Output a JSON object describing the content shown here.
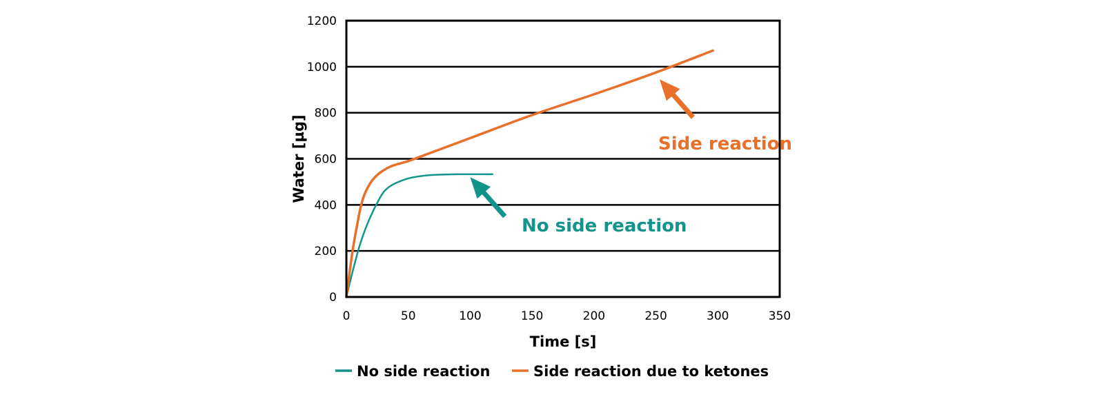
{
  "chart_data": {
    "type": "line",
    "xlabel": "Time [s]",
    "ylabel": "Water [µg]",
    "xlim": [
      0,
      350
    ],
    "ylim": [
      0,
      1200
    ],
    "xticks": [
      0,
      50,
      100,
      150,
      200,
      250,
      300,
      350
    ],
    "yticks": [
      0,
      200,
      400,
      600,
      800,
      1000,
      1200
    ],
    "grid": "horizontal",
    "legend_position": "bottom",
    "series": [
      {
        "name": "No side reaction",
        "color": "#13948a",
        "x": [
          0,
          5,
          10,
          15,
          20,
          25,
          30,
          35,
          40,
          50,
          60,
          70,
          80,
          90,
          100,
          110,
          118
        ],
        "y": [
          0,
          110,
          210,
          290,
          355,
          410,
          455,
          480,
          495,
          515,
          525,
          530,
          532,
          533,
          533,
          533,
          533
        ]
      },
      {
        "name": "Side reaction due to ketones",
        "color": "#e8702a",
        "x": [
          0,
          5,
          10,
          12,
          15,
          20,
          25,
          30,
          35,
          40,
          50,
          60,
          100,
          150,
          200,
          250,
          296
        ],
        "y": [
          0,
          200,
          350,
          400,
          450,
          500,
          530,
          550,
          565,
          575,
          590,
          610,
          690,
          790,
          880,
          975,
          1070
        ]
      }
    ],
    "annotations": [
      {
        "text": "Side reaction",
        "color": "#e8702a",
        "arrow_from": [
          280,
          780
        ],
        "arrow_to": [
          253,
          945
        ]
      },
      {
        "text": "No side reaction",
        "color": "#13948a",
        "arrow_from": [
          128,
          350
        ],
        "arrow_to": [
          100,
          520
        ]
      }
    ]
  }
}
